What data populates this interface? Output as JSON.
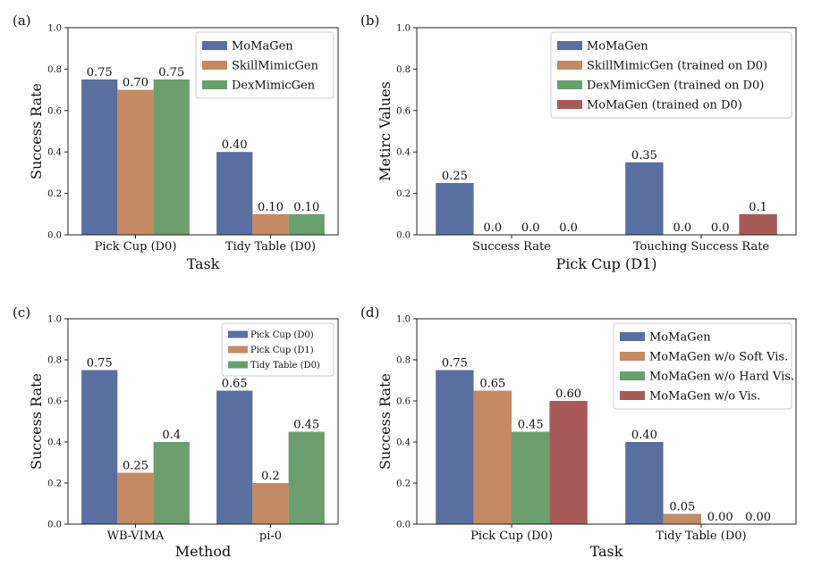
{
  "chart_data": [
    {
      "panel": "(a)",
      "type": "bar",
      "xlabel": "Task",
      "ylabel": "Success Rate",
      "ylim": [
        0,
        1.0
      ],
      "yticks": [
        "0.0",
        "0.2",
        "0.4",
        "0.6",
        "0.8",
        "1.0"
      ],
      "categories": [
        "Pick Cup (D0)",
        "Tidy Table (D0)"
      ],
      "legend_position": "top-right",
      "series": [
        {
          "name": "MoMaGen",
          "color": "#5a6fa0",
          "values": [
            0.75,
            0.4
          ],
          "labels": [
            "0.75",
            "0.40"
          ]
        },
        {
          "name": "SkillMimicGen",
          "color": "#c38a63",
          "values": [
            0.7,
            0.1
          ],
          "labels": [
            "0.70",
            "0.10"
          ]
        },
        {
          "name": "DexMimicGen",
          "color": "#6b9e6f",
          "values": [
            0.75,
            0.1
          ],
          "labels": [
            "0.75",
            "0.10"
          ]
        }
      ]
    },
    {
      "panel": "(b)",
      "type": "bar",
      "xlabel": "Pick Cup (D1)",
      "ylabel": "Metirc Values",
      "ylim": [
        0,
        1.0
      ],
      "yticks": [
        "0.0",
        "0.2",
        "0.4",
        "0.6",
        "0.8",
        "1.0"
      ],
      "categories": [
        "Success Rate",
        "Touching Success Rate"
      ],
      "legend_position": "top-right",
      "series": [
        {
          "name": "MoMaGen",
          "color": "#5a6fa0",
          "values": [
            0.25,
            0.35
          ],
          "labels": [
            "0.25",
            "0.35"
          ]
        },
        {
          "name": "SkillMimicGen (trained on D0)",
          "color": "#c38a63",
          "values": [
            0.0,
            0.0
          ],
          "labels": [
            "0.0",
            "0.0"
          ]
        },
        {
          "name": "DexMimicGen (trained on D0)",
          "color": "#6b9e6f",
          "values": [
            0.0,
            0.0
          ],
          "labels": [
            "0.0",
            "0.0"
          ]
        },
        {
          "name": "MoMaGen (trained on D0)",
          "color": "#a85a5a",
          "values": [
            0.0,
            0.1
          ],
          "labels": [
            "0.0",
            "0.1"
          ]
        }
      ]
    },
    {
      "panel": "(c)",
      "type": "bar",
      "xlabel": "Method",
      "ylabel": "Success Rate",
      "ylim": [
        0,
        1.0
      ],
      "yticks": [
        "0.0",
        "0.2",
        "0.4",
        "0.6",
        "0.8",
        "1.0"
      ],
      "categories": [
        "WB-VIMA",
        "pi-0"
      ],
      "legend_position": "top-right",
      "legend_small": true,
      "series": [
        {
          "name": "Pick Cup (D0)",
          "color": "#5a6fa0",
          "values": [
            0.75,
            0.65
          ],
          "labels": [
            "0.75",
            "0.65"
          ]
        },
        {
          "name": "Pick Cup (D1)",
          "color": "#c38a63",
          "values": [
            0.25,
            0.2
          ],
          "labels": [
            "0.25",
            "0.2"
          ]
        },
        {
          "name": "Tidy Table (D0)",
          "color": "#6b9e6f",
          "values": [
            0.4,
            0.45
          ],
          "labels": [
            "0.4",
            "0.45"
          ]
        }
      ]
    },
    {
      "panel": "(d)",
      "type": "bar",
      "xlabel": "Task",
      "ylabel": "Success Rate",
      "ylim": [
        0,
        1.0
      ],
      "yticks": [
        "0.0",
        "0.2",
        "0.4",
        "0.6",
        "0.8",
        "1.0"
      ],
      "categories": [
        "Pick Cup (D0)",
        "Tidy Table (D0)"
      ],
      "legend_position": "top-right",
      "series": [
        {
          "name": "MoMaGen",
          "color": "#5a6fa0",
          "values": [
            0.75,
            0.4
          ],
          "labels": [
            "0.75",
            "0.40"
          ]
        },
        {
          "name": "MoMaGen w/o Soft Vis.",
          "color": "#c38a63",
          "values": [
            0.65,
            0.05
          ],
          "labels": [
            "0.65",
            "0.05"
          ]
        },
        {
          "name": "MoMaGen w/o Hard Vis.",
          "color": "#6b9e6f",
          "values": [
            0.45,
            0.0
          ],
          "labels": [
            "0.45",
            "0.00"
          ]
        },
        {
          "name": "MoMaGen w/o Vis.",
          "color": "#a85a5a",
          "values": [
            0.6,
            0.0
          ],
          "labels": [
            "0.60",
            "0.00"
          ]
        }
      ]
    }
  ]
}
